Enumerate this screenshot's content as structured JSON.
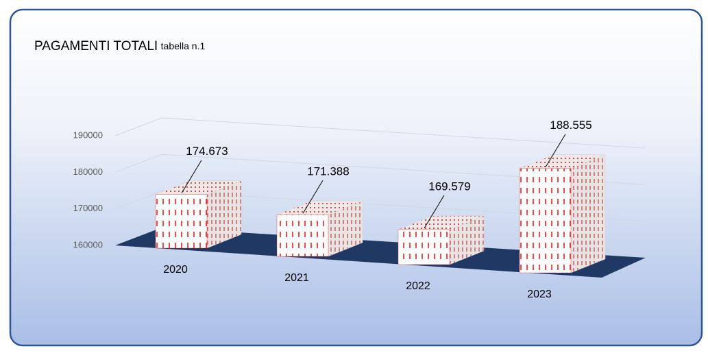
{
  "chart_data": {
    "type": "bar",
    "title": "PAGAMENTI TOTALI",
    "subtitle": "tabella n.1",
    "categories": [
      "2020",
      "2021",
      "2022",
      "2023"
    ],
    "values": [
      174673,
      171388,
      169579,
      188555
    ],
    "value_labels": [
      "174.673",
      "171.388",
      "169.579",
      "188.555"
    ],
    "color": "#e02020",
    "ylim": [
      160000,
      190000
    ],
    "yticks": [
      160000,
      170000,
      180000,
      190000
    ],
    "grid": true
  }
}
